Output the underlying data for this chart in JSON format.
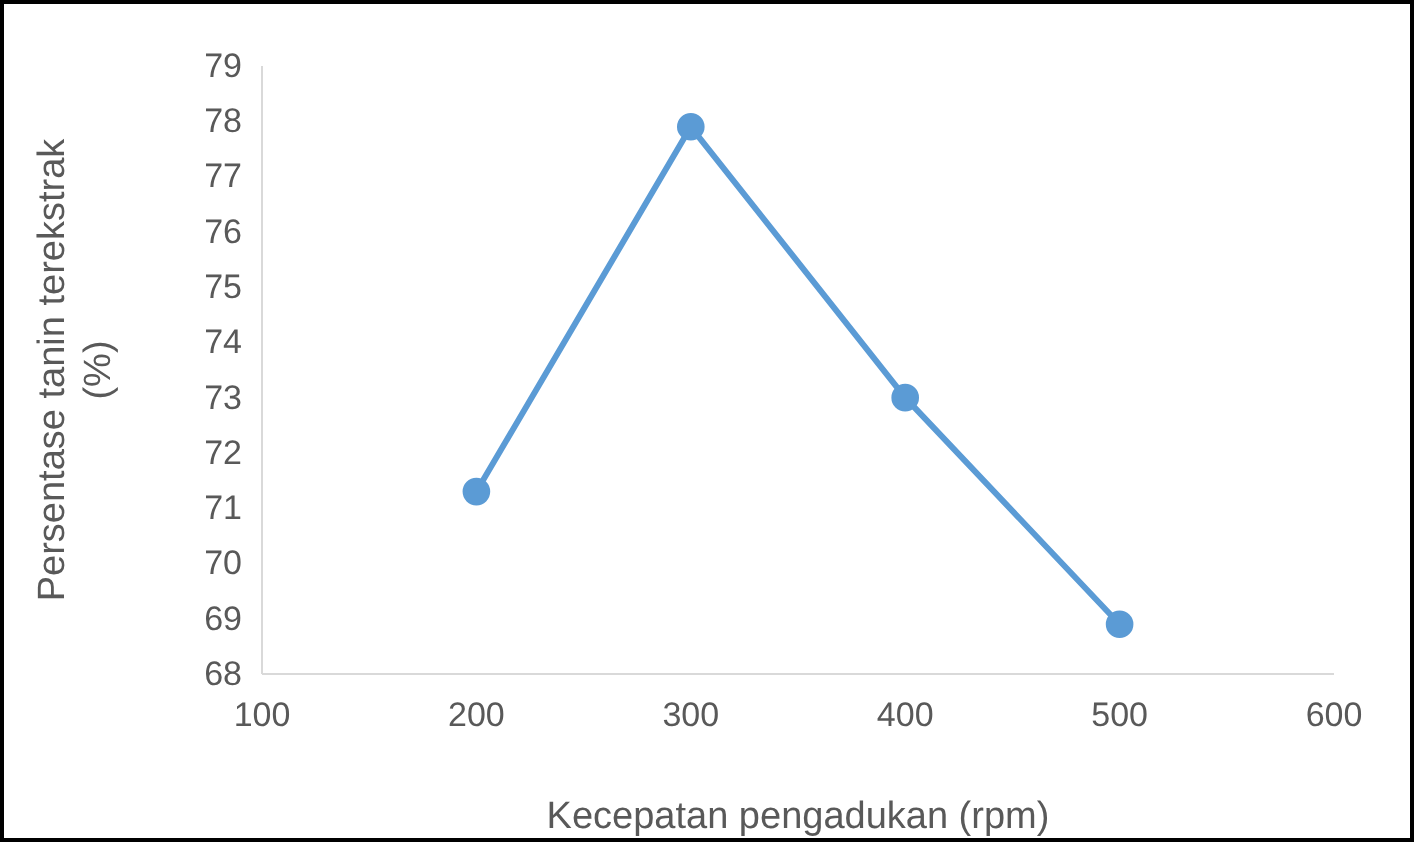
{
  "chart_data": {
    "type": "line",
    "xlabel": "Kecepatan pengadukan (rpm)",
    "ylabel": "Persentase tanin terekstrak (%)",
    "x": [
      200,
      300,
      400,
      500
    ],
    "series": [
      {
        "color": "#5b9bd5",
        "values": [
          71.3,
          77.9,
          73.0,
          68.9
        ]
      }
    ],
    "xlim": [
      100,
      600
    ],
    "xticks": [
      100,
      200,
      300,
      400,
      500,
      600
    ],
    "ylim": [
      68,
      79
    ],
    "yticks": [
      68,
      69,
      70,
      71,
      72,
      73,
      74,
      75,
      76,
      77,
      78,
      79
    ],
    "grid": false,
    "marker": "circle",
    "line_style": "solid"
  }
}
